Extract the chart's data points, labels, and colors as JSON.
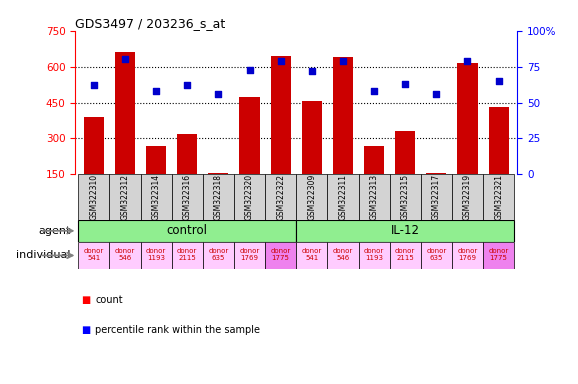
{
  "title": "GDS3497 / 203236_s_at",
  "samples": [
    "GSM322310",
    "GSM322312",
    "GSM322314",
    "GSM322316",
    "GSM322318",
    "GSM322320",
    "GSM322322",
    "GSM322309",
    "GSM322311",
    "GSM322313",
    "GSM322315",
    "GSM322317",
    "GSM322319",
    "GSM322321"
  ],
  "counts": [
    390,
    660,
    270,
    320,
    155,
    475,
    645,
    455,
    640,
    270,
    330,
    155,
    615,
    430
  ],
  "percentiles": [
    62,
    80,
    58,
    62,
    56,
    73,
    79,
    72,
    79,
    58,
    63,
    56,
    79,
    65
  ],
  "bar_color": "#cc0000",
  "dot_color": "#0000cc",
  "ylim_left": [
    150,
    750
  ],
  "ylim_right": [
    0,
    100
  ],
  "yticks_left": [
    150,
    300,
    450,
    600,
    750
  ],
  "yticks_right": [
    0,
    25,
    50,
    75,
    100
  ],
  "agent_control_indices": [
    0,
    1,
    2,
    3,
    4,
    5,
    6
  ],
  "agent_il12_indices": [
    7,
    8,
    9,
    10,
    11,
    12,
    13
  ],
  "agent_control_label": "control",
  "agent_il12_label": "IL-12",
  "agent_color": "#90ee90",
  "individual_labels": [
    "donor\n541",
    "donor\n546",
    "donor\n1193",
    "donor\n2115",
    "donor\n635",
    "donor\n1769",
    "donor\n1775",
    "donor\n541",
    "donor\n546",
    "donor\n1193",
    "donor\n2115",
    "donor\n635",
    "donor\n1769",
    "donor\n1775"
  ],
  "individual_colors": [
    "#ffccff",
    "#ffccff",
    "#ffccff",
    "#ffccff",
    "#ffccff",
    "#ffccff",
    "#ee82ee",
    "#ffccff",
    "#ffccff",
    "#ffccff",
    "#ffccff",
    "#ffccff",
    "#ffccff",
    "#ee82ee"
  ],
  "row_agent_label": "agent",
  "row_individual_label": "individual",
  "legend_count_label": "count",
  "legend_percentile_label": "percentile rank within the sample",
  "background_color": "#ffffff",
  "sample_bg": "#d3d3d3",
  "grid_lines": [
    300,
    450,
    600
  ]
}
